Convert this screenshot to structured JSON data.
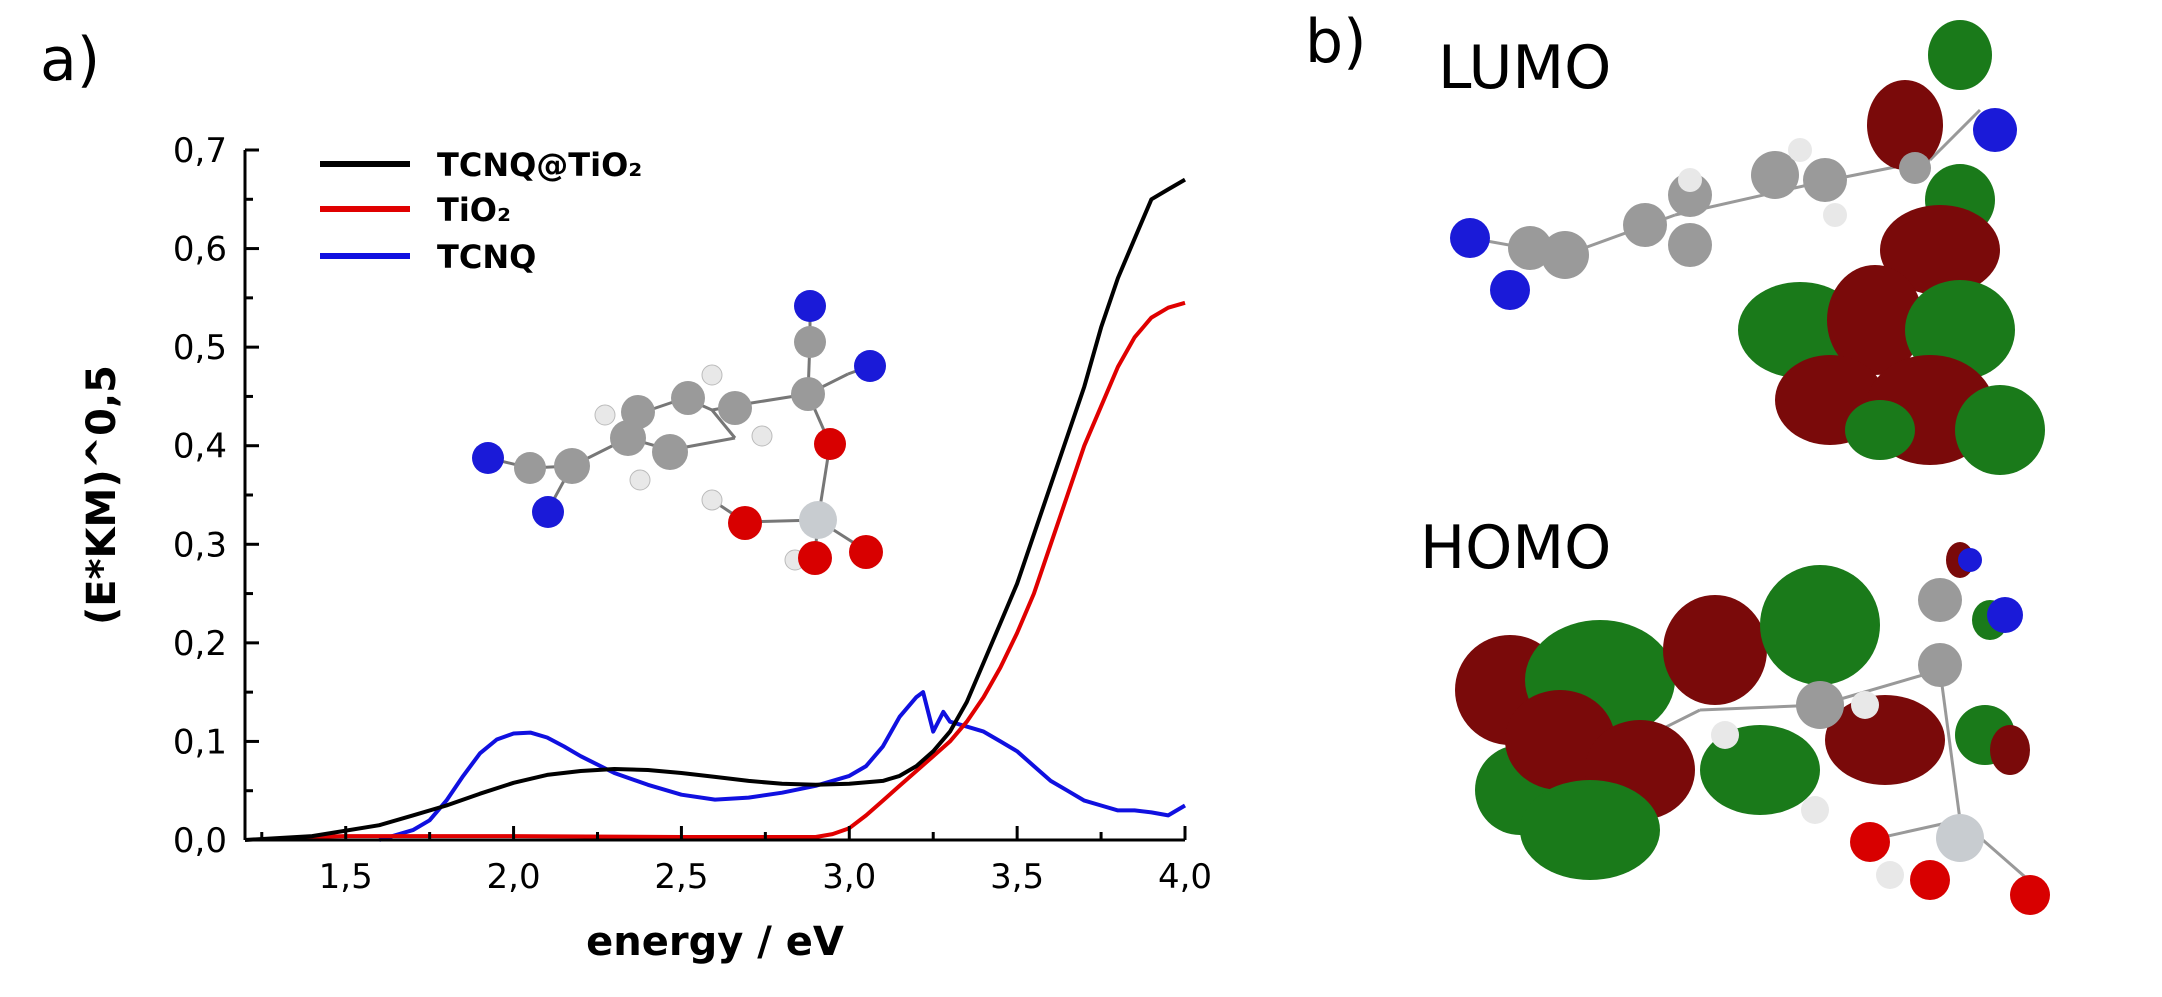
{
  "figure": {
    "panel_a_label": "a)",
    "panel_b_label": "b)",
    "lumo_label": "LUMO",
    "homo_label": "HOMO"
  },
  "colors": {
    "tcnq_tio2": "#000000",
    "tio2": "#e00000",
    "tcnq": "#1010e0",
    "orbital_positive": "#7a0a0a",
    "orbital_negative": "#1a7a1a",
    "atom_carbon": "#9a9a9a",
    "atom_nitrogen": "#1a1ad8",
    "atom_oxygen": "#d80000",
    "atom_hydrogen": "#e8e8e8",
    "atom_titanium": "#c8ccd0"
  },
  "chart_data": {
    "type": "line",
    "xlabel": "energy / eV",
    "ylabel": "(E*KM)^0,5",
    "xlim": [
      1.2,
      4.0
    ],
    "ylim": [
      0.0,
      0.7
    ],
    "xticks": [
      "1,5",
      "2,0",
      "2,5",
      "3,0",
      "3,5",
      "4,0"
    ],
    "xtick_values": [
      1.5,
      2.0,
      2.5,
      3.0,
      3.5,
      4.0
    ],
    "yticks": [
      "0,0",
      "0,1",
      "0,2",
      "0,3",
      "0,4",
      "0,5",
      "0,6",
      "0,7"
    ],
    "ytick_values": [
      0.0,
      0.1,
      0.2,
      0.3,
      0.4,
      0.5,
      0.6,
      0.7
    ],
    "legend_position": "top-left",
    "series": [
      {
        "name": "TCNQ@TiO₂",
        "color": "#000000",
        "x": [
          1.2,
          1.4,
          1.6,
          1.7,
          1.8,
          1.9,
          2.0,
          2.1,
          2.2,
          2.3,
          2.4,
          2.5,
          2.6,
          2.7,
          2.8,
          2.9,
          3.0,
          3.1,
          3.15,
          3.2,
          3.25,
          3.3,
          3.35,
          3.4,
          3.45,
          3.5,
          3.55,
          3.6,
          3.65,
          3.7,
          3.75,
          3.8,
          3.85,
          3.9,
          3.95,
          4.0
        ],
        "y": [
          0.0,
          0.004,
          0.015,
          0.025,
          0.035,
          0.047,
          0.058,
          0.066,
          0.07,
          0.072,
          0.071,
          0.068,
          0.064,
          0.06,
          0.057,
          0.056,
          0.057,
          0.06,
          0.065,
          0.075,
          0.09,
          0.11,
          0.14,
          0.18,
          0.22,
          0.26,
          0.31,
          0.36,
          0.41,
          0.46,
          0.52,
          0.57,
          0.61,
          0.65,
          0.66,
          0.67
        ]
      },
      {
        "name": "TiO₂",
        "color": "#e00000",
        "x": [
          1.38,
          1.5,
          1.8,
          2.0,
          2.5,
          2.9,
          2.95,
          3.0,
          3.05,
          3.1,
          3.15,
          3.2,
          3.25,
          3.3,
          3.35,
          3.4,
          3.45,
          3.5,
          3.55,
          3.6,
          3.65,
          3.7,
          3.75,
          3.8,
          3.85,
          3.9,
          3.95,
          4.0
        ],
        "y": [
          0.003,
          0.004,
          0.004,
          0.004,
          0.003,
          0.003,
          0.006,
          0.012,
          0.025,
          0.04,
          0.055,
          0.07,
          0.085,
          0.1,
          0.12,
          0.145,
          0.175,
          0.21,
          0.25,
          0.3,
          0.35,
          0.4,
          0.44,
          0.48,
          0.51,
          0.53,
          0.54,
          0.545
        ]
      },
      {
        "name": "TCNQ",
        "color": "#1010e0",
        "x": [
          1.6,
          1.7,
          1.75,
          1.8,
          1.85,
          1.9,
          1.95,
          2.0,
          2.05,
          2.1,
          2.15,
          2.2,
          2.3,
          2.4,
          2.5,
          2.6,
          2.7,
          2.8,
          2.9,
          3.0,
          3.05,
          3.1,
          3.15,
          3.2,
          3.22,
          3.25,
          3.28,
          3.3,
          3.35,
          3.4,
          3.45,
          3.5,
          3.55,
          3.6,
          3.65,
          3.7,
          3.75,
          3.8,
          3.85,
          3.9,
          3.95,
          4.0
        ],
        "y": [
          0.0,
          0.01,
          0.02,
          0.04,
          0.065,
          0.088,
          0.102,
          0.108,
          0.109,
          0.104,
          0.095,
          0.085,
          0.068,
          0.056,
          0.046,
          0.041,
          0.043,
          0.048,
          0.055,
          0.065,
          0.075,
          0.095,
          0.125,
          0.145,
          0.15,
          0.11,
          0.13,
          0.12,
          0.115,
          0.11,
          0.1,
          0.09,
          0.075,
          0.06,
          0.05,
          0.04,
          0.035,
          0.03,
          0.03,
          0.028,
          0.025,
          0.035
        ]
      }
    ]
  }
}
